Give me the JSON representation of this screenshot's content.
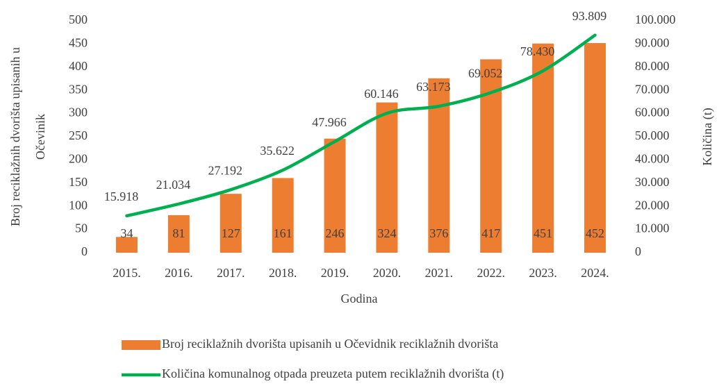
{
  "chart_data": {
    "type": "bar+line",
    "xlabel": "Godina",
    "ylabel": [
      "Broj reciklažnih dvorišta upisanih u",
      "Očevinik"
    ],
    "y2label": "Količina (t)",
    "categories": [
      "2015.",
      "2016.",
      "2017.",
      "2018.",
      "2019.",
      "2020.",
      "2021.",
      "2022.",
      "2023.",
      "2024."
    ],
    "series": [
      {
        "name": "Broj reciklažnih dvorišta upisanih u Očevidnik reciklažnih dvorišta",
        "type": "bar",
        "color": "#ed7d31",
        "values": [
          34,
          81,
          127,
          161,
          246,
          324,
          376,
          417,
          451,
          452
        ]
      },
      {
        "name": "Količina komunalnog otpada preuzeta putem reciklažnih dvorišta (t)",
        "type": "line",
        "color": "#00b050",
        "axis": "y2",
        "values": [
          15918,
          21034,
          27192,
          35622,
          47966,
          60146,
          63173,
          69052,
          78430,
          93809
        ],
        "value_labels": [
          "15.918",
          "21.034",
          "27.192",
          "35.622",
          "47.966",
          "60.146",
          "63.173",
          "69.052",
          "78.430",
          "93.809"
        ]
      }
    ],
    "ylim": [
      0,
      500
    ],
    "yticks": [
      0,
      50,
      100,
      150,
      200,
      250,
      300,
      350,
      400,
      450,
      500
    ],
    "y2lim": [
      0,
      100000
    ],
    "y2ticks": [
      0,
      {
        "value": 10000,
        "label": "10.000"
      },
      {
        "value": 20000,
        "label": "20.000"
      },
      {
        "value": 30000,
        "label": "30.000"
      },
      {
        "value": 40000,
        "label": "40.000"
      },
      {
        "value": 50000,
        "label": "50.000"
      },
      {
        "value": 60000,
        "label": "60.000"
      },
      {
        "value": 70000,
        "label": "70.000"
      },
      {
        "value": 80000,
        "label": "80.000"
      },
      {
        "value": 90000,
        "label": "90.000"
      },
      {
        "value": 100000,
        "label": "100.000"
      }
    ]
  }
}
